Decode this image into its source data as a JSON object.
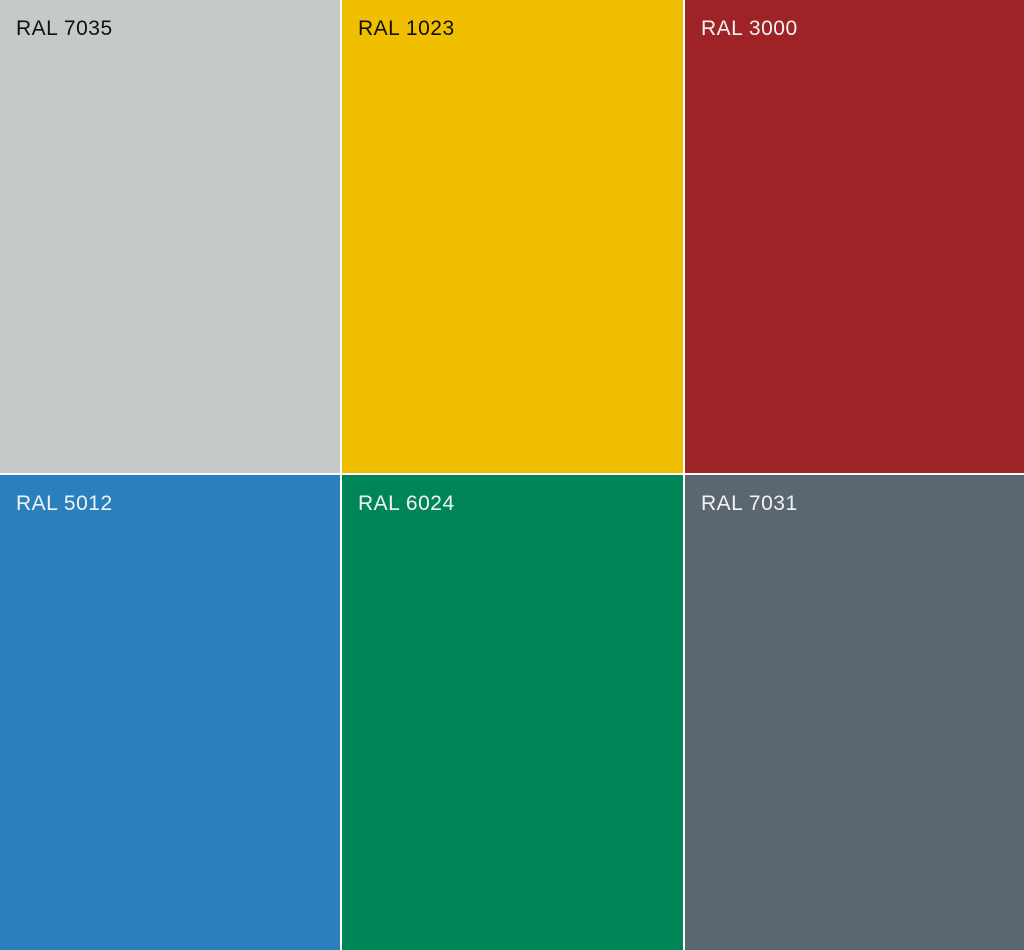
{
  "swatches": [
    {
      "label": "RAL 7035",
      "color": "#c5c9c9",
      "text_color": "#111111"
    },
    {
      "label": "RAL 1023",
      "color": "#f0c000",
      "text_color": "#111111"
    },
    {
      "label": "RAL 3000",
      "color": "#9e2326",
      "text_color": "#f2f2f2"
    },
    {
      "label": "RAL 5012",
      "color": "#2a80bd",
      "text_color": "#f2f2f2"
    },
    {
      "label": "RAL 6024",
      "color": "#008556",
      "text_color": "#f2f2f2"
    },
    {
      "label": "RAL 7031",
      "color": "#5b6770",
      "text_color": "#f2f2f2"
    }
  ]
}
